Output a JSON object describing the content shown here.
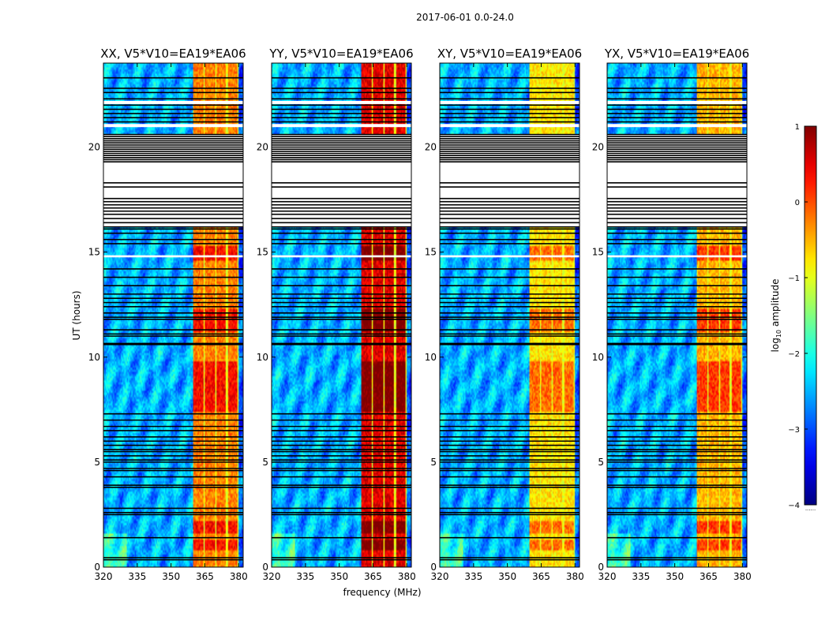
{
  "chart_data": {
    "type": "heatmap",
    "title": "2017-06-01 0.0-24.0",
    "xlabel": "frequency (MHz)",
    "ylabel": "UT (hours)",
    "xlim": [
      320,
      382
    ],
    "ylim": [
      0,
      24
    ],
    "x_ticks": [
      320,
      335,
      350,
      365,
      380
    ],
    "y_ticks": [
      0,
      5,
      10,
      15,
      20
    ],
    "panels": [
      {
        "title": "XX, V5*V10=EA19*EA06",
        "band_start": 360,
        "band_boost": 0.0
      },
      {
        "title": "YY, V5*V10=EA19*EA06",
        "band_start": 360,
        "band_boost": 0.15
      },
      {
        "title": "XY, V5*V10=EA19*EA06",
        "band_start": 360,
        "band_boost": -0.1
      },
      {
        "title": "YX, V5*V10=EA19*EA06",
        "band_start": 360,
        "band_boost": -0.05
      }
    ],
    "band_channels_mhz": [
      [
        360,
        364.5
      ],
      [
        365.2,
        369.5
      ],
      [
        370.3,
        374.5
      ],
      [
        375.2,
        379.4
      ]
    ],
    "strong_band_hours": [
      [
        1.6,
        2.2
      ],
      [
        0.8,
        1.3
      ],
      [
        7.4,
        9.8
      ],
      [
        11.2,
        12.3
      ],
      [
        14.6,
        15.3
      ]
    ],
    "blank_intervals_hours": [
      [
        16.2,
        20.6
      ],
      [
        22.05,
        22.2
      ],
      [
        20.95,
        21.1
      ],
      [
        14.75,
        14.85
      ]
    ],
    "flag_lines_hours": [
      0.35,
      0.45,
      1.4,
      2.5,
      2.6,
      2.8,
      3.8,
      3.9,
      4.3,
      4.6,
      4.7,
      5.0,
      5.1,
      5.3,
      5.5,
      5.6,
      5.8,
      6.0,
      6.2,
      6.5,
      6.7,
      7.0,
      7.3,
      10.6,
      10.65,
      11.0,
      11.1,
      11.3,
      11.8,
      11.9,
      12.1,
      12.4,
      12.6,
      12.8,
      13.0,
      13.4,
      13.8,
      14.2,
      15.4,
      15.6,
      15.9,
      16.1,
      16.2,
      16.4,
      16.6,
      16.8,
      16.95,
      17.1,
      17.25,
      17.4,
      17.55,
      18.1,
      18.3,
      19.3,
      19.4,
      19.5,
      19.6,
      19.7,
      19.8,
      19.9,
      20.0,
      20.1,
      20.2,
      20.3,
      20.4,
      20.5,
      20.6,
      21.2,
      21.4,
      21.6,
      21.8,
      22.0,
      22.3,
      22.6,
      22.8,
      23.3
    ],
    "colorbar": {
      "label": "log10 amplitude",
      "label_main": "log",
      "label_sub": "10",
      "label_rest": " amplitude",
      "range": [
        -4,
        1
      ],
      "ticks": [
        "1",
        "0",
        "−1",
        "−2",
        "−3",
        "−4"
      ],
      "tick_values": [
        1,
        0,
        -1,
        -2,
        -3,
        -4
      ],
      "footnote": "......",
      "colormap": "jet"
    }
  }
}
